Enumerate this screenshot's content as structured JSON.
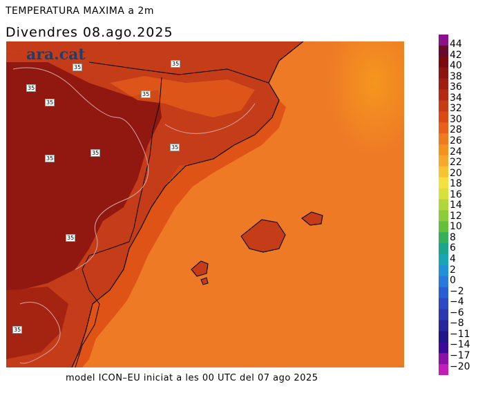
{
  "map_title": "TEMPERATURA MAXIMA a 2m",
  "map_date": "Divendres  08.ago.2025",
  "footer": "model ICON–EU iniciat a les 00 UTC del 07 ago 2025",
  "brand": "ara.cat",
  "contour_label": "35",
  "legend": {
    "levels": [
      "44",
      "42",
      "40",
      "38",
      "36",
      "34",
      "32",
      "30",
      "28",
      "26",
      "24",
      "22",
      "20",
      "18",
      "16",
      "14",
      "12",
      "10",
      "8",
      "6",
      "4",
      "2",
      "0",
      "−2",
      "−4",
      "−6",
      "−8",
      "−11",
      "−14",
      "−17",
      "−20"
    ],
    "colors": [
      "#8c0f8c",
      "#6a0a2a",
      "#7a0a10",
      "#8c1410",
      "#a01e10",
      "#b42a14",
      "#c83a14",
      "#dc4a14",
      "#e8601a",
      "#f07a1e",
      "#f5921e",
      "#f7a82a",
      "#f8c42e",
      "#f6e040",
      "#d8e03a",
      "#b0d63a",
      "#8ccc38",
      "#64c03a",
      "#34b05a",
      "#1aa68a",
      "#16a6b4",
      "#2090d8",
      "#2878e0",
      "#2a5cd4",
      "#2c48c4",
      "#2c38b0",
      "#28269c",
      "#20188a",
      "#3a0a9a",
      "#8a10a8",
      "#c41cb8"
    ]
  },
  "colors": {
    "sea": "#ee7a26",
    "sea_warm": "#f28c28",
    "land": "#c43c18",
    "land_hot": "#8c1410",
    "border": "#000000",
    "contour": "#d7a6a6"
  }
}
